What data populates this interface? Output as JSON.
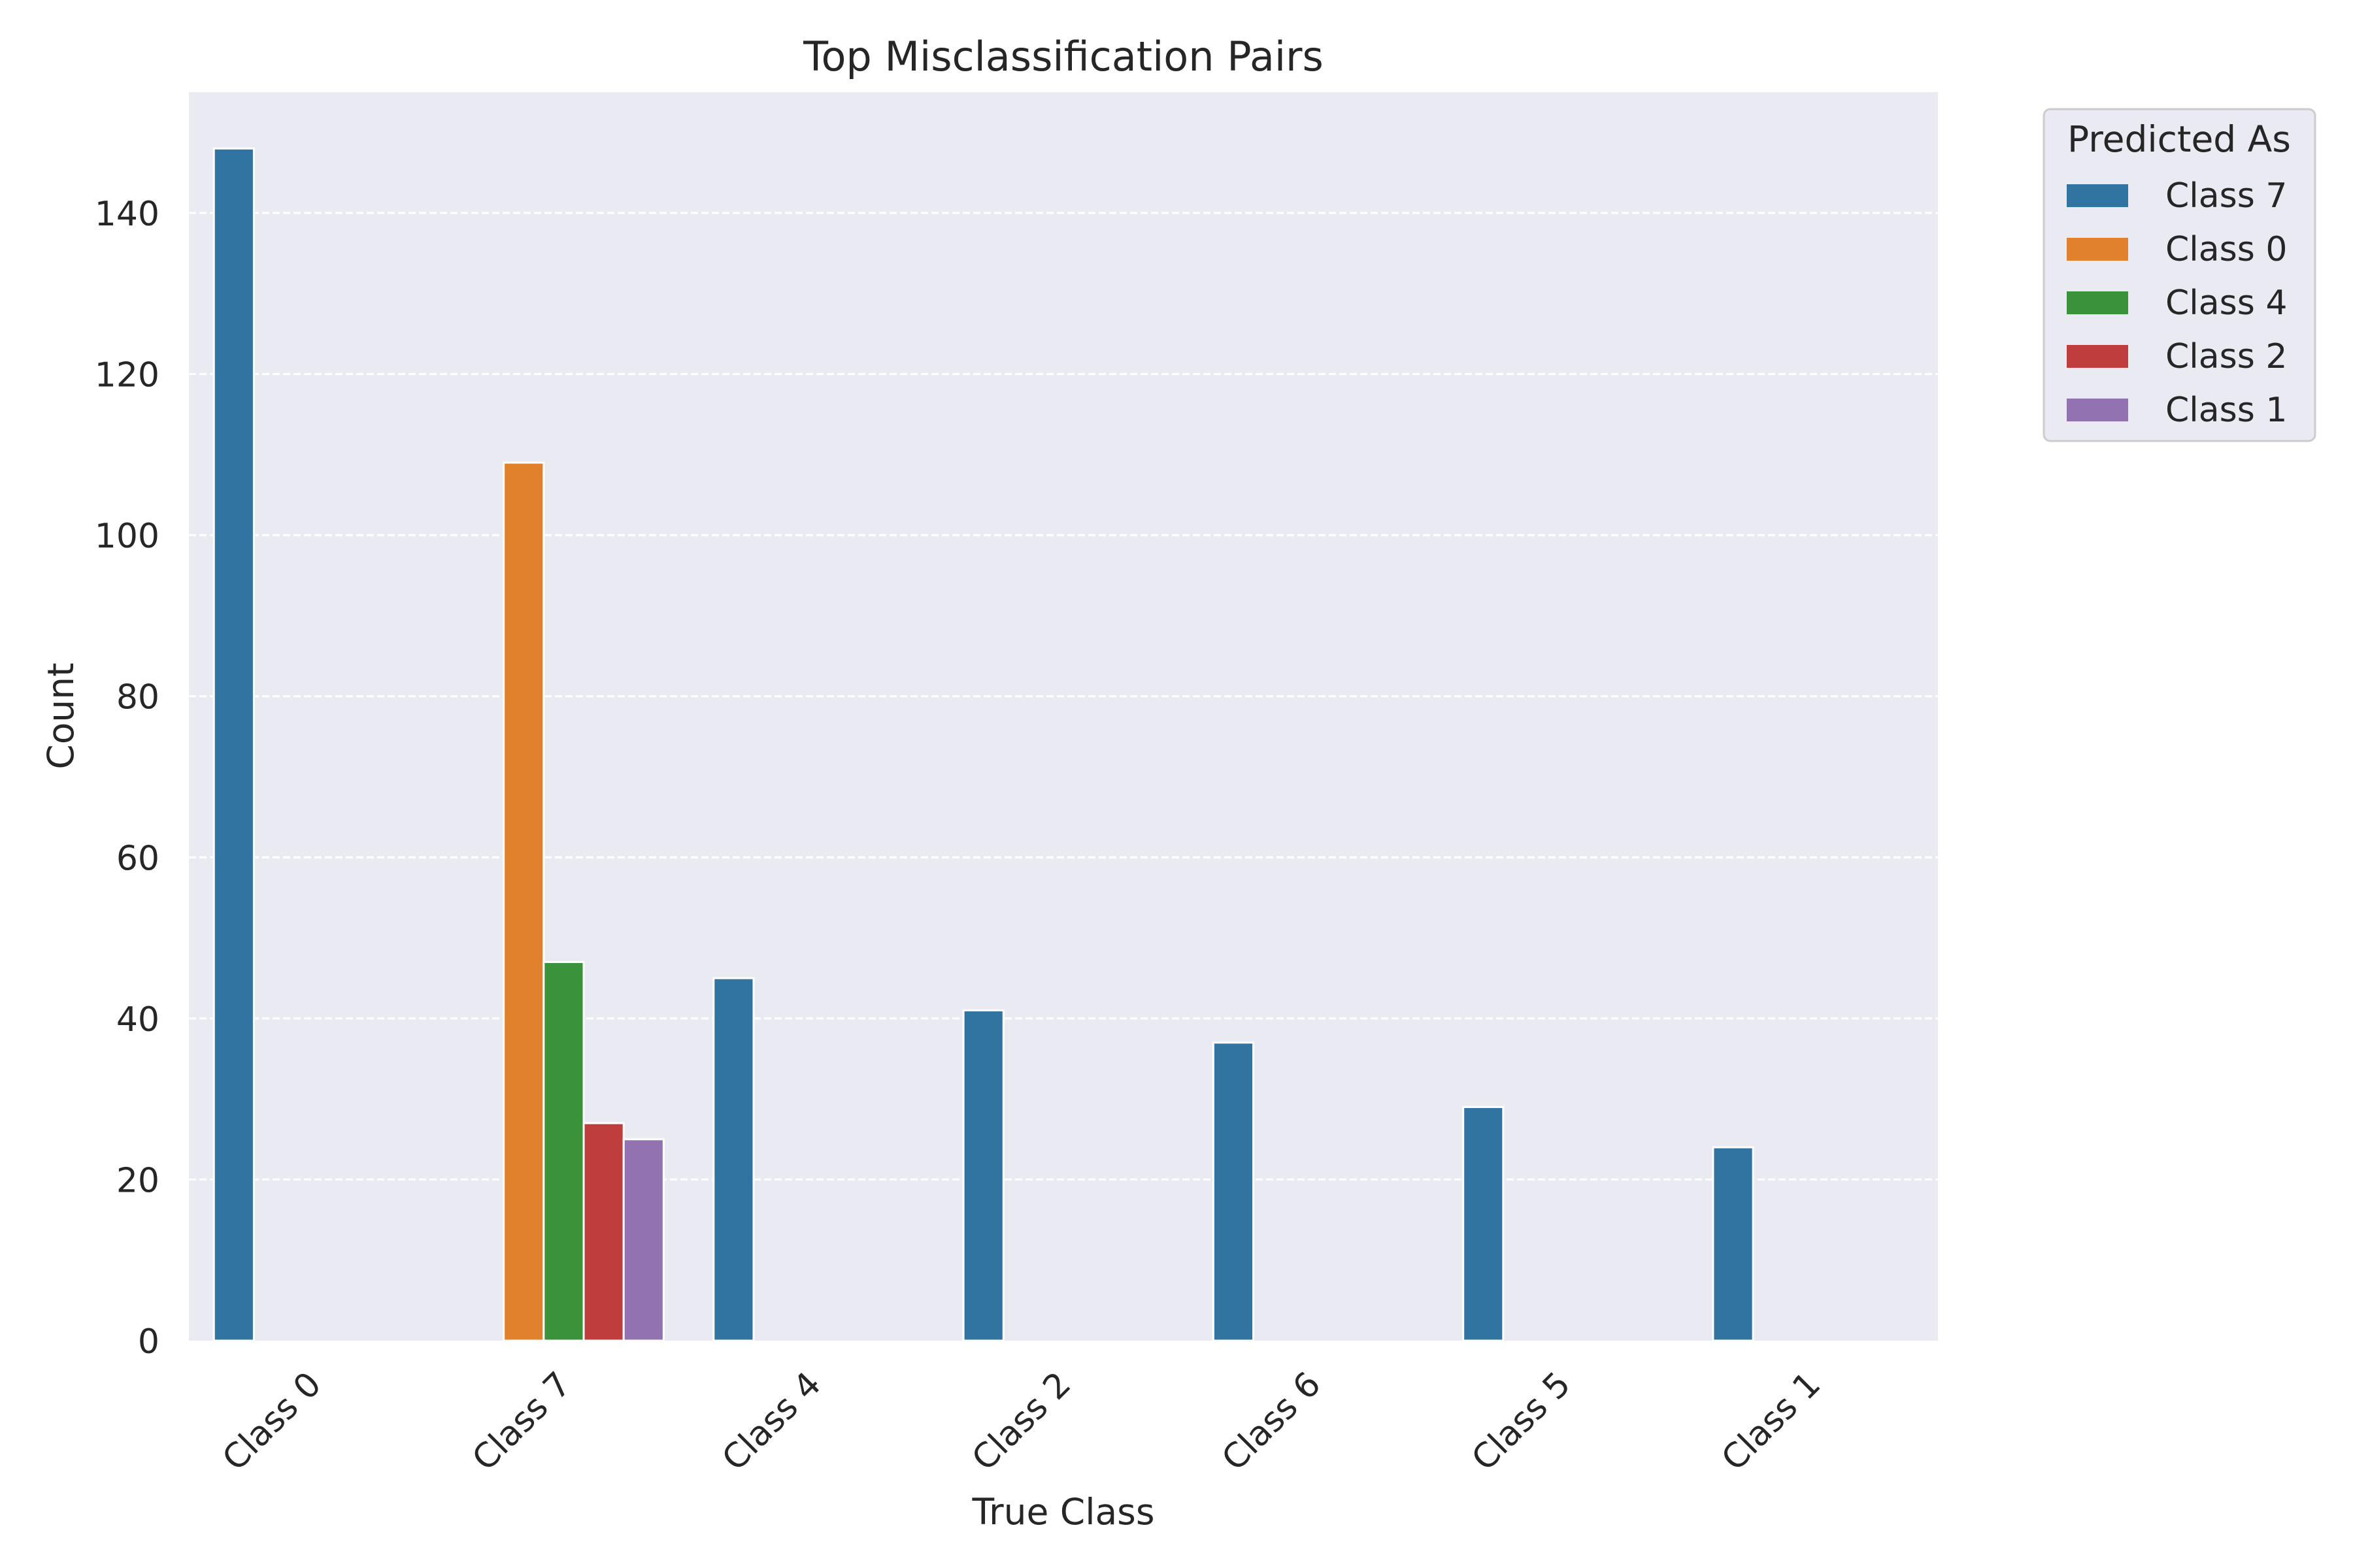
{
  "chart_data": {
    "type": "bar",
    "title": "Top Misclassification Pairs",
    "xlabel": "True Class",
    "ylabel": "Count",
    "ylim": [
      0,
      155
    ],
    "yticks": [
      0,
      20,
      40,
      60,
      80,
      100,
      120,
      140
    ],
    "grid": "horizontal dashed",
    "categories": [
      "Class 0",
      "Class 7",
      "Class 4",
      "Class 2",
      "Class 6",
      "Class 5",
      "Class 1"
    ],
    "legend": {
      "title": "Predicted As",
      "placement": "outside upper right"
    },
    "series": [
      {
        "name": "Class 7",
        "color": "#3274a1",
        "values": [
          148,
          null,
          45,
          41,
          37,
          29,
          24
        ]
      },
      {
        "name": "Class 0",
        "color": "#e1812c",
        "values": [
          null,
          109,
          null,
          null,
          null,
          null,
          null
        ]
      },
      {
        "name": "Class 4",
        "color": "#3a923a",
        "values": [
          null,
          47,
          null,
          null,
          null,
          null,
          null
        ]
      },
      {
        "name": "Class 2",
        "color": "#c03d3e",
        "values": [
          null,
          27,
          null,
          null,
          null,
          null,
          null
        ]
      },
      {
        "name": "Class 1",
        "color": "#9372b2",
        "values": [
          null,
          25,
          null,
          null,
          null,
          null,
          null
        ]
      }
    ],
    "colors": {
      "plot_background": "#eaeaf2",
      "grid": "#ffffff",
      "text": "#262626"
    }
  }
}
